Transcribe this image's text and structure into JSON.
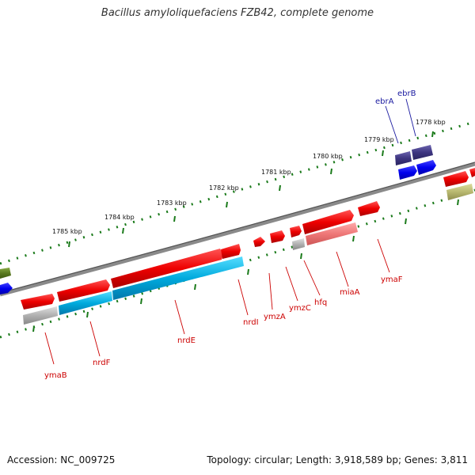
{
  "title": "Bacillus amyloliquefaciens FZB42, complete genome",
  "footer": {
    "accession": "Accession: NC_009725",
    "info": "Topology: circular; Length: 3,918,589 bp; Genes: 3,811"
  },
  "ticks": [
    "1778 kbp",
    "1779 kbp",
    "1780 kbp",
    "1781 kbp",
    "1782 kbp",
    "1783 kbp",
    "1784 kbp",
    "1785 kbp"
  ],
  "genes": {
    "ymaB": "ymaB",
    "nrdF": "nrdF",
    "nrdE": "nrdE",
    "nrdI": "nrdI",
    "ymzA": "ymzA",
    "ymzC": "ymzC",
    "hfq": "hfq",
    "miaA": "miaA",
    "ymaF": "ymaF",
    "ebrA": "ebrA",
    "ebrB": "ebrB"
  },
  "colors": {
    "cds_forward": "#ee0000",
    "rna": "#00aadd",
    "pseudo": "#b0b0b0",
    "mia": "#ee7777",
    "ebr": "#3d3580",
    "blue": "#0000ee",
    "olive_dark": "#5a7a20",
    "olive_light": "#b8b870",
    "backbone": "#777777",
    "tick": "#1a7a1a",
    "label": "#cc0000"
  }
}
